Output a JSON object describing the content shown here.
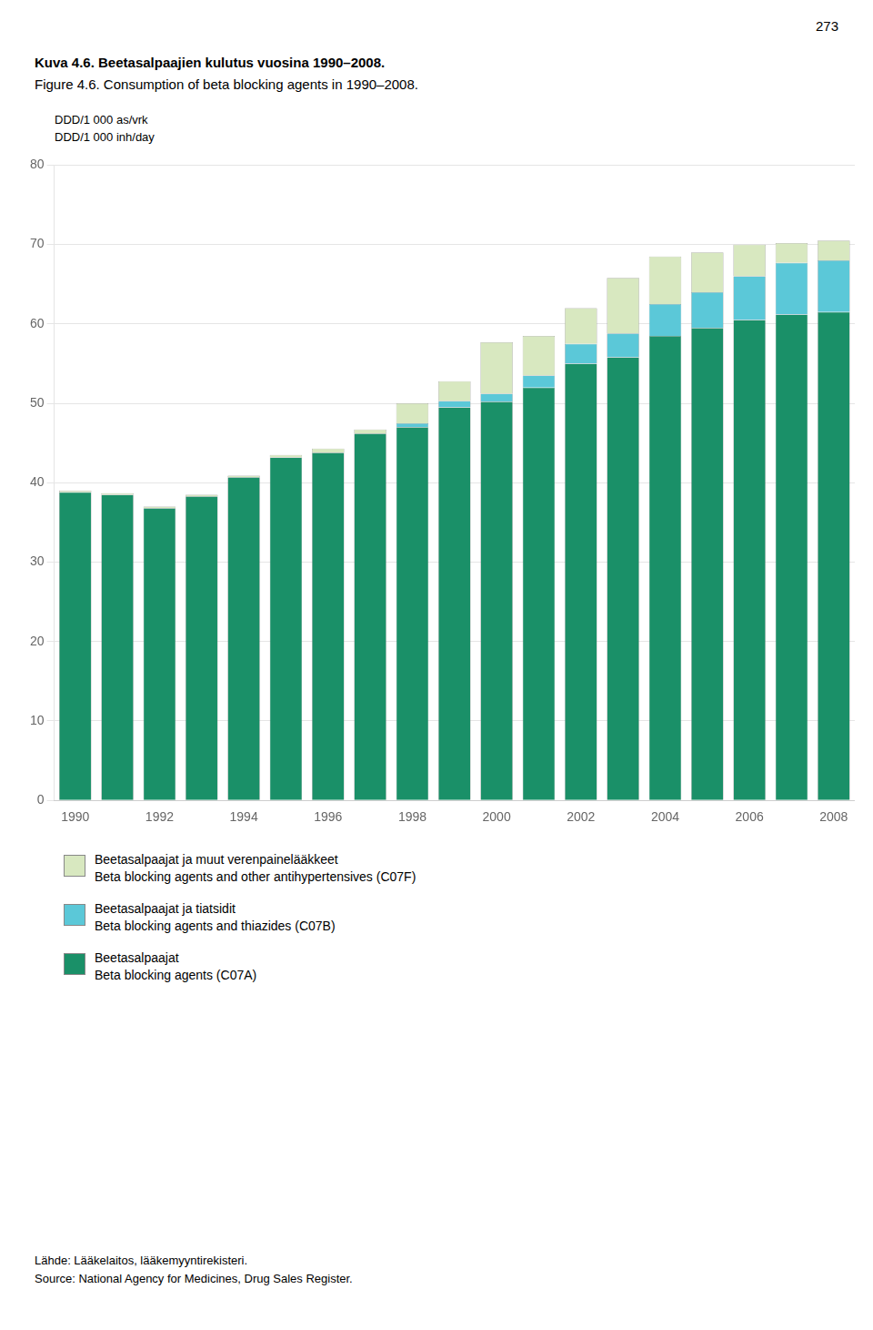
{
  "chart_data": {
    "type": "bar",
    "title": "Kuva 4.6. Beetasalpaajien kulutus vuosina 1990–2008.",
    "subtitle": "Figure 4.6. Consumption of beta blocking agents in 1990–2008.",
    "ylabel": [
      "DDD/1 000 as/vrk",
      "DDD/1 000 inh/day"
    ],
    "annotations": [
      "273",
      "Lähde: Lääkelaitos, lääkemyyntirekisteri.",
      "Source: National Agency for Medicines, Drug Sales Register."
    ],
    "categories": [
      "1990",
      null,
      "1992",
      null,
      "1994",
      null,
      "1996",
      null,
      "1998",
      null,
      "2000",
      null,
      "2002",
      null,
      "2004",
      null,
      "2006",
      null,
      "2008"
    ],
    "series": [
      {
        "name": [
          "Beetasalpaajat",
          "Beta blocking agents (C07A)"
        ],
        "color": "#1a9068",
        "values": [
          38.8,
          38.5,
          36.8,
          38.3,
          40.7,
          43.2,
          43.8,
          46.2,
          47.0,
          49.5,
          50.2,
          52.0,
          55.0,
          55.8,
          58.5,
          59.5,
          60.5,
          61.2,
          61.5
        ]
      },
      {
        "name": [
          "Beetasalpaajat ja tiatsidit",
          "Beta blocking agents and thiazides (C07B)"
        ],
        "color": "#5bc8d8",
        "values": [
          0.0,
          0.0,
          0.0,
          0.0,
          0.0,
          0.0,
          0.0,
          0.0,
          0.5,
          0.8,
          1.0,
          1.5,
          2.5,
          3.0,
          4.0,
          4.5,
          5.5,
          6.5,
          6.5
        ]
      },
      {
        "name": [
          "Beetasalpaajat ja muut verenpainelääkkeet",
          "Beta blocking agents and other antihypertensives (C07F)"
        ],
        "color": "#d8e8c0",
        "values": [
          0.2,
          0.2,
          0.2,
          0.2,
          0.2,
          0.3,
          0.5,
          0.5,
          2.5,
          2.5,
          6.5,
          5.0,
          4.5,
          7.0,
          6.0,
          5.0,
          4.0,
          2.5,
          2.5
        ]
      }
    ],
    "stacked": true,
    "ylim": [
      0,
      80
    ],
    "yticks": [
      0,
      10,
      20,
      30,
      40,
      50,
      60,
      70,
      80
    ],
    "grid": true
  }
}
